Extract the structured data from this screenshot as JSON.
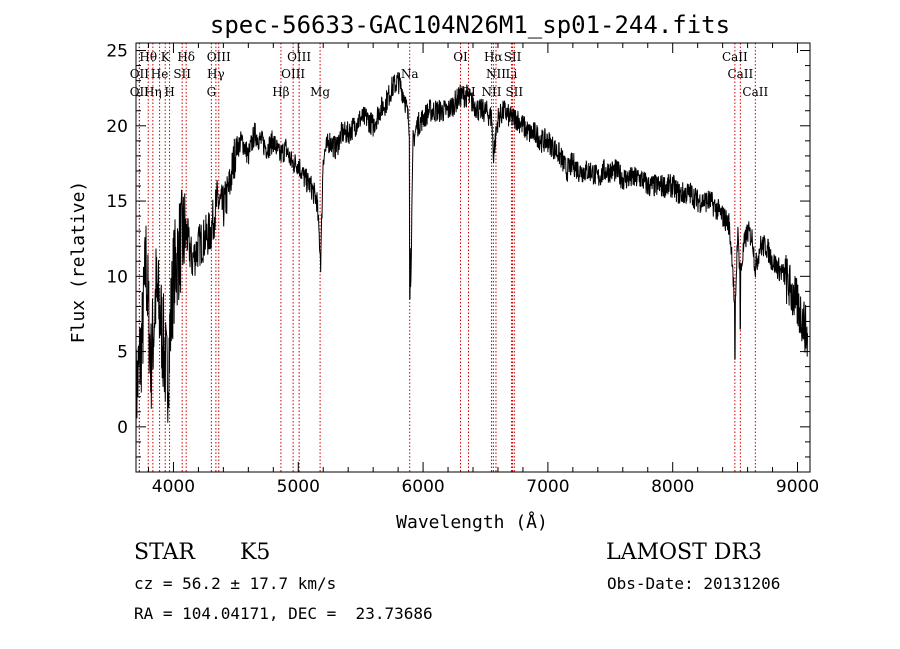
{
  "chart_data": {
    "type": "line",
    "title": "spec-56633-GAC104N26M1_sp01-244.fits",
    "xlabel": "Wavelength (Å)",
    "ylabel": "Flux (relative)",
    "xlim": [
      3700,
      9100
    ],
    "ylim": [
      -3,
      25.5
    ],
    "xticks": [
      4000,
      5000,
      6000,
      7000,
      8000,
      9000
    ],
    "yticks": [
      0,
      5,
      10,
      15,
      20,
      25
    ],
    "series": [
      {
        "name": "flux",
        "x": [
          3700,
          3750,
          3780,
          3820,
          3860,
          3900,
          3950,
          4000,
          4050,
          4100,
          4150,
          4200,
          4250,
          4300,
          4350,
          4400,
          4450,
          4500,
          4550,
          4600,
          4650,
          4700,
          4750,
          4800,
          4850,
          4900,
          4950,
          5000,
          5050,
          5100,
          5150,
          5180,
          5200,
          5250,
          5300,
          5350,
          5400,
          5450,
          5500,
          5550,
          5600,
          5650,
          5700,
          5750,
          5800,
          5850,
          5870,
          5890,
          5900,
          5920,
          5950,
          6000,
          6050,
          6100,
          6150,
          6200,
          6250,
          6300,
          6350,
          6400,
          6450,
          6500,
          6550,
          6563,
          6600,
          6650,
          6700,
          6750,
          6800,
          6850,
          6900,
          6950,
          7000,
          7050,
          7100,
          7150,
          7200,
          7250,
          7300,
          7350,
          7400,
          7450,
          7500,
          7550,
          7600,
          7650,
          7700,
          7750,
          7800,
          7850,
          7900,
          7950,
          8000,
          8050,
          8100,
          8150,
          8200,
          8250,
          8300,
          8350,
          8400,
          8450,
          8480,
          8498,
          8520,
          8542,
          8570,
          8600,
          8640,
          8662,
          8700,
          8750,
          8800,
          8850,
          8900,
          8950,
          9000,
          9050,
          9100
        ],
        "values": [
          2,
          6,
          11,
          4,
          9,
          7,
          3,
          10,
          12,
          13,
          11,
          12,
          12.5,
          13,
          15,
          14.5,
          16,
          18.5,
          19,
          18,
          19.5,
          19,
          18.5,
          19,
          18,
          18.5,
          17.5,
          17.5,
          16.5,
          16,
          15,
          11,
          18,
          19,
          18.5,
          19.5,
          19.5,
          20,
          20.5,
          20.5,
          20,
          21,
          21.5,
          22.5,
          23,
          22,
          21,
          20,
          9,
          19,
          20,
          20.5,
          21,
          21,
          21,
          21,
          21.5,
          22,
          22,
          21.5,
          21,
          21,
          20.5,
          18,
          20.5,
          21,
          20.5,
          20.5,
          20,
          19.5,
          19.5,
          19,
          19,
          18.5,
          18,
          17,
          17.5,
          17,
          17,
          17,
          16.5,
          17,
          17,
          17,
          16.5,
          16.5,
          16.5,
          16.5,
          16,
          16,
          16,
          16,
          16,
          15.5,
          15.5,
          15.5,
          15,
          15,
          15,
          14.5,
          14,
          13.5,
          11,
          7,
          13,
          10,
          12,
          13,
          12.5,
          10.5,
          12,
          12,
          11,
          10.5,
          10,
          9,
          8,
          7,
          5
        ]
      }
    ],
    "lines": [
      {
        "label": "Hθ",
        "wave": 3798,
        "row": 1
      },
      {
        "label": "K",
        "wave": 3934,
        "row": 1
      },
      {
        "label": "Hδ",
        "wave": 4102,
        "row": 1
      },
      {
        "label": "OIII",
        "wave": 4363,
        "row": 1
      },
      {
        "label": "OIII",
        "wave": 5007,
        "row": 1
      },
      {
        "label": "OI",
        "wave": 6300,
        "row": 1
      },
      {
        "label": "Hα",
        "wave": 6563,
        "row": 1
      },
      {
        "label": "SII",
        "wave": 6717,
        "row": 1
      },
      {
        "label": "CaII",
        "wave": 8498,
        "row": 1
      },
      {
        "label": "OII",
        "wave": 3727,
        "row": 2
      },
      {
        "label": "He",
        "wave": 3889,
        "row": 2
      },
      {
        "label": "SII",
        "wave": 4070,
        "row": 2
      },
      {
        "label": "Hγ",
        "wave": 4340,
        "row": 2
      },
      {
        "label": "OIII",
        "wave": 4959,
        "row": 2
      },
      {
        "label": "Na",
        "wave": 5893,
        "row": 2
      },
      {
        "label": "NII",
        "wave": 6584,
        "row": 2
      },
      {
        "label": "Li",
        "wave": 6708,
        "row": 2
      },
      {
        "label": "CaII",
        "wave": 8542,
        "row": 2
      },
      {
        "label": "OII",
        "wave": 3727,
        "row": 3
      },
      {
        "label": "Hη",
        "wave": 3835,
        "row": 3
      },
      {
        "label": "H",
        "wave": 3969,
        "row": 3
      },
      {
        "label": "G",
        "wave": 4304,
        "row": 3
      },
      {
        "label": "Hβ",
        "wave": 4861,
        "row": 3
      },
      {
        "label": "Mg",
        "wave": 5175,
        "row": 3
      },
      {
        "label": "OI",
        "wave": 6364,
        "row": 3
      },
      {
        "label": "NII",
        "wave": 6548,
        "row": 3
      },
      {
        "label": "SII",
        "wave": 6731,
        "row": 3
      },
      {
        "label": "CaII",
        "wave": 8662,
        "row": 3
      }
    ]
  },
  "info": {
    "class": "STAR",
    "subclass": "K5",
    "survey": "LAMOST DR3",
    "cz": "cz = 56.2 ± 17.7 km/s",
    "obs_date": "Obs-Date: 20131206",
    "coords": "RA = 104.04171, DEC =  23.73686"
  },
  "colors": {
    "line": "#000000",
    "marker": "#cc0000"
  }
}
